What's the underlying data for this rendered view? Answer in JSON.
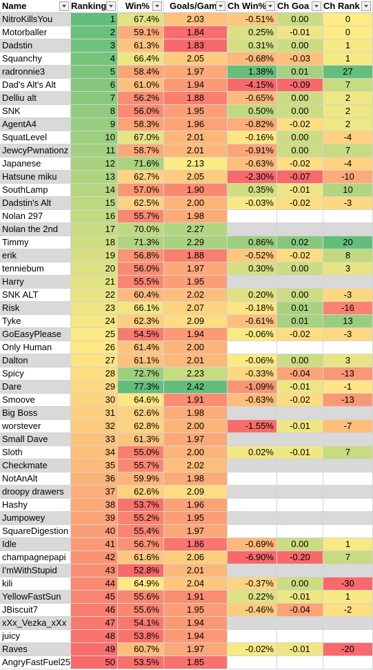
{
  "headers": [
    "Name",
    "Ranking",
    "Win%",
    "Goals/Gam",
    "Ch Win%",
    "Ch Goa",
    "Ch Rank"
  ],
  "rows": [
    {
      "name": "NitroKillsYou",
      "rank": "1",
      "win": "67.4%",
      "goals": "2.03",
      "chwin": "-0.51%",
      "chgoals": "0.00",
      "chrank": "0"
    },
    {
      "name": "Motorballer",
      "rank": "2",
      "win": "59.1%",
      "goals": "1.84",
      "chwin": "0.25%",
      "chgoals": "-0.01",
      "chrank": "0"
    },
    {
      "name": "Dadstin",
      "rank": "3",
      "win": "61.3%",
      "goals": "1.83",
      "chwin": "0.31%",
      "chgoals": "0.00",
      "chrank": "1"
    },
    {
      "name": "Squanchy",
      "rank": "4",
      "win": "66.4%",
      "goals": "2.05",
      "chwin": "-0.68%",
      "chgoals": "-0.03",
      "chrank": "1"
    },
    {
      "name": "radronnie3",
      "rank": "5",
      "win": "58.4%",
      "goals": "1.97",
      "chwin": "1.38%",
      "chgoals": "0.01",
      "chrank": "27"
    },
    {
      "name": "Dad's Alt's Alt",
      "rank": "6",
      "win": "61.0%",
      "goals": "1.94",
      "chwin": "-4.15%",
      "chgoals": "-0.09",
      "chrank": "7"
    },
    {
      "name": "Delliu alt",
      "rank": "7",
      "win": "56.2%",
      "goals": "1.88",
      "chwin": "-0.65%",
      "chgoals": "0.00",
      "chrank": "2"
    },
    {
      "name": "SNK",
      "rank": "8",
      "win": "56.0%",
      "goals": "1.95",
      "chwin": "0.50%",
      "chgoals": "0.00",
      "chrank": "2"
    },
    {
      "name": "AgentA4",
      "rank": "9",
      "win": "58.3%",
      "goals": "1.96",
      "chwin": "-0.82%",
      "chgoals": "-0.02",
      "chrank": "2"
    },
    {
      "name": "SquatLevel",
      "rank": "10",
      "win": "67.0%",
      "goals": "2.01",
      "chwin": "-0.16%",
      "chgoals": "0.00",
      "chrank": "-4"
    },
    {
      "name": "JewcyPwnationz",
      "rank": "11",
      "win": "58.7%",
      "goals": "2.01",
      "chwin": "-0.91%",
      "chgoals": "0.00",
      "chrank": "7"
    },
    {
      "name": "Japanese",
      "rank": "12",
      "win": "71.6%",
      "goals": "2.13",
      "chwin": "-0.63%",
      "chgoals": "-0.02",
      "chrank": "-4"
    },
    {
      "name": "Hatsune miku",
      "rank": "13",
      "win": "62.7%",
      "goals": "2.05",
      "chwin": "-2.30%",
      "chgoals": "-0.07",
      "chrank": "-10"
    },
    {
      "name": "SouthLamp",
      "rank": "14",
      "win": "57.0%",
      "goals": "1.90",
      "chwin": "0.35%",
      "chgoals": "-0.01",
      "chrank": "10"
    },
    {
      "name": "Dadstin's Alt",
      "rank": "15",
      "win": "62.5%",
      "goals": "2.00",
      "chwin": "-0.03%",
      "chgoals": "-0.02",
      "chrank": "-3"
    },
    {
      "name": "Nolan 297",
      "rank": "16",
      "win": "55.7%",
      "goals": "1.98",
      "chwin": "",
      "chgoals": "",
      "chrank": ""
    },
    {
      "name": "Nolan the 2nd",
      "rank": "17",
      "win": "70.0%",
      "goals": "2.27",
      "chwin": "",
      "chgoals": "",
      "chrank": ""
    },
    {
      "name": "Timmy",
      "rank": "18",
      "win": "71.3%",
      "goals": "2.29",
      "chwin": "0.86%",
      "chgoals": "0.02",
      "chrank": "20"
    },
    {
      "name": "erik",
      "rank": "19",
      "win": "56.8%",
      "goals": "1.88",
      "chwin": "-0.52%",
      "chgoals": "-0.02",
      "chrank": "8"
    },
    {
      "name": "tenniebum",
      "rank": "20",
      "win": "56.0%",
      "goals": "1.97",
      "chwin": "0.30%",
      "chgoals": "0.00",
      "chrank": "3"
    },
    {
      "name": "Harry",
      "rank": "21",
      "win": "55.5%",
      "goals": "1.95",
      "chwin": "",
      "chgoals": "",
      "chrank": ""
    },
    {
      "name": "SNK ALT",
      "rank": "22",
      "win": "60.4%",
      "goals": "2.02",
      "chwin": "0.20%",
      "chgoals": "0.00",
      "chrank": "-3"
    },
    {
      "name": "Risk",
      "rank": "23",
      "win": "66.1%",
      "goals": "2.07",
      "chwin": "-0.18%",
      "chgoals": "0.01",
      "chrank": "-16"
    },
    {
      "name": "Tyke",
      "rank": "24",
      "win": "62.3%",
      "goals": "2.09",
      "chwin": "-0.61%",
      "chgoals": "0.01",
      "chrank": "13"
    },
    {
      "name": "GoEasyPlease",
      "rank": "25",
      "win": "54.5%",
      "goals": "1.94",
      "chwin": "-0.06%",
      "chgoals": "-0.02",
      "chrank": "-3"
    },
    {
      "name": "Only Human",
      "rank": "26",
      "win": "61.4%",
      "goals": "2.00",
      "chwin": "",
      "chgoals": "",
      "chrank": ""
    },
    {
      "name": "Dalton",
      "rank": "27",
      "win": "61.1%",
      "goals": "2.01",
      "chwin": "-0.06%",
      "chgoals": "0.00",
      "chrank": "3"
    },
    {
      "name": "Spicy",
      "rank": "28",
      "win": "72.7%",
      "goals": "2.23",
      "chwin": "-0.33%",
      "chgoals": "-0.04",
      "chrank": "-13"
    },
    {
      "name": "Dare",
      "rank": "29",
      "win": "77.3%",
      "goals": "2.42",
      "chwin": "-1.09%",
      "chgoals": "-0.01",
      "chrank": "-1"
    },
    {
      "name": "Smoove",
      "rank": "30",
      "win": "64.6%",
      "goals": "1.91",
      "chwin": "-0.63%",
      "chgoals": "-0.02",
      "chrank": "-13"
    },
    {
      "name": "Big Boss",
      "rank": "31",
      "win": "62.6%",
      "goals": "1.98",
      "chwin": "",
      "chgoals": "",
      "chrank": ""
    },
    {
      "name": "worstever",
      "rank": "32",
      "win": "62.8%",
      "goals": "2.00",
      "chwin": "-1.55%",
      "chgoals": "-0.01",
      "chrank": "-7"
    },
    {
      "name": "Small Dave",
      "rank": "33",
      "win": "61.3%",
      "goals": "1.97",
      "chwin": "",
      "chgoals": "",
      "chrank": ""
    },
    {
      "name": "Sloth",
      "rank": "34",
      "win": "55.0%",
      "goals": "2.00",
      "chwin": "0.02%",
      "chgoals": "-0.01",
      "chrank": "7"
    },
    {
      "name": "Checkmate",
      "rank": "35",
      "win": "55.7%",
      "goals": "2.02",
      "chwin": "",
      "chgoals": "",
      "chrank": ""
    },
    {
      "name": "NotAnAlt",
      "rank": "36",
      "win": "59.9%",
      "goals": "1.98",
      "chwin": "",
      "chgoals": "",
      "chrank": ""
    },
    {
      "name": "droopy drawers",
      "rank": "37",
      "win": "62.6%",
      "goals": "2.09",
      "chwin": "",
      "chgoals": "",
      "chrank": ""
    },
    {
      "name": "Hashy",
      "rank": "38",
      "win": "53.7%",
      "goals": "1.96",
      "chwin": "",
      "chgoals": "",
      "chrank": ""
    },
    {
      "name": "Jumpowey",
      "rank": "39",
      "win": "55.2%",
      "goals": "1.95",
      "chwin": "",
      "chgoals": "",
      "chrank": ""
    },
    {
      "name": "SquareDigestion",
      "rank": "40",
      "win": "55.4%",
      "goals": "1.97",
      "chwin": "",
      "chgoals": "",
      "chrank": ""
    },
    {
      "name": "Idle",
      "rank": "41",
      "win": "56.7%",
      "goals": "1.86",
      "chwin": "-0.69%",
      "chgoals": "0.00",
      "chrank": "1"
    },
    {
      "name": "champagnepapi",
      "rank": "42",
      "win": "61.6%",
      "goals": "2.06",
      "chwin": "-6.90%",
      "chgoals": "-0.20",
      "chrank": "7"
    },
    {
      "name": "I'mWithStupid",
      "rank": "43",
      "win": "52.8%",
      "goals": "2.01",
      "chwin": "",
      "chgoals": "",
      "chrank": ""
    },
    {
      "name": "kili",
      "rank": "44",
      "win": "64.9%",
      "goals": "2.04",
      "chwin": "-0.37%",
      "chgoals": "0.00",
      "chrank": "-30"
    },
    {
      "name": "YellowFastSun",
      "rank": "45",
      "win": "55.6%",
      "goals": "1.91",
      "chwin": "0.22%",
      "chgoals": "-0.01",
      "chrank": "1"
    },
    {
      "name": "JBiscuit7",
      "rank": "46",
      "win": "55.6%",
      "goals": "1.95",
      "chwin": "-0.46%",
      "chgoals": "-0.04",
      "chrank": "-2"
    },
    {
      "name": "xXx_Vezka_xXx",
      "rank": "47",
      "win": "54.1%",
      "goals": "1.94",
      "chwin": "",
      "chgoals": "",
      "chrank": ""
    },
    {
      "name": "juicy",
      "rank": "48",
      "win": "53.8%",
      "goals": "1.94",
      "chwin": "",
      "chgoals": "",
      "chrank": ""
    },
    {
      "name": "Raves",
      "rank": "49",
      "win": "60.7%",
      "goals": "1.97",
      "chwin": "-0.02%",
      "chgoals": "-0.01",
      "chrank": "-20"
    },
    {
      "name": "AngryFastFuel25",
      "rank": "50",
      "win": "53.5%",
      "goals": "1.85",
      "chwin": "",
      "chgoals": "",
      "chrank": ""
    }
  ],
  "colors": {
    "low": "#f8696b",
    "mid": "#ffeb84",
    "high": "#63be7b",
    "empty_cell": "#d9d9d9",
    "gridline": "#d4d4d4"
  }
}
